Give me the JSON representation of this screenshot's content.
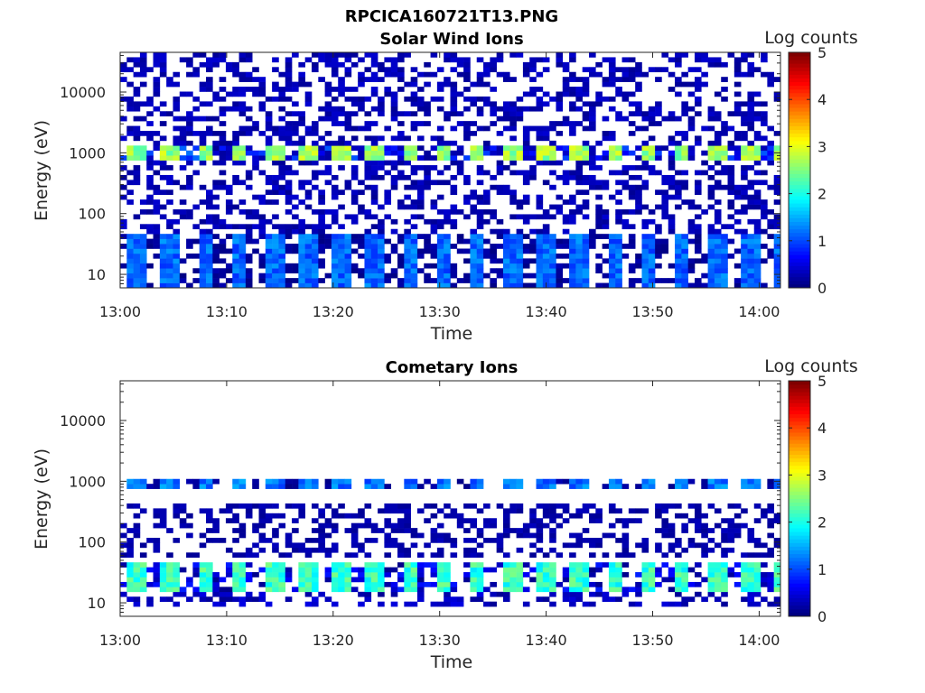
{
  "figure_title": "RPCICA160721T13.PNG",
  "chart_data": [
    {
      "type": "heatmap",
      "title": "Solar Wind Ions",
      "xlabel": "Time",
      "ylabel": "Energy (eV)",
      "y_scale": "log",
      "ylim": [
        6,
        45000
      ],
      "x_range": [
        "13:00",
        "14:02"
      ],
      "x_ticks": [
        "13:00",
        "13:10",
        "13:20",
        "13:30",
        "13:40",
        "13:50",
        "14:00"
      ],
      "y_ticks": [
        "10",
        "100",
        "1000",
        "10000"
      ],
      "colorbar": {
        "label": "Log counts",
        "range": [
          0,
          5
        ],
        "ticks": [
          "0",
          "1",
          "2",
          "3",
          "4",
          "5"
        ]
      },
      "features": [
        {
          "energy_band_eV": [
            6,
            45
          ],
          "typical_log_counts": [
            0.3,
            1.4
          ],
          "cadence_min": 3.2
        },
        {
          "energy_band_eV": [
            700,
            1400
          ],
          "typical_log_counts": [
            1.5,
            3.0
          ],
          "cadence_min": 3.2
        },
        {
          "energy_band_eV": [
            45,
            45000
          ],
          "typical_log_counts": [
            0.1,
            0.4
          ],
          "note": "sparse background"
        }
      ]
    },
    {
      "type": "heatmap",
      "title": "Cometary Ions",
      "xlabel": "Time",
      "ylabel": "Energy (eV)",
      "y_scale": "log",
      "ylim": [
        6,
        45000
      ],
      "x_range": [
        "13:00",
        "14:02"
      ],
      "x_ticks": [
        "13:00",
        "13:10",
        "13:20",
        "13:30",
        "13:40",
        "13:50",
        "14:00"
      ],
      "y_ticks": [
        "10",
        "100",
        "1000",
        "10000"
      ],
      "colorbar": {
        "label": "Log counts",
        "range": [
          0,
          5
        ],
        "ticks": [
          "0",
          "1",
          "2",
          "3",
          "4",
          "5"
        ]
      },
      "features": [
        {
          "energy_band_eV": [
            15,
            45
          ],
          "typical_log_counts": [
            1.0,
            2.5
          ],
          "cadence_min": 3.2
        },
        {
          "energy_band_eV": [
            8,
            15
          ],
          "typical_log_counts": [
            0.1,
            0.5
          ],
          "note": "low-energy tail"
        },
        {
          "energy_band_eV": [
            700,
            1100
          ],
          "typical_log_counts": [
            0.3,
            1.5
          ],
          "cadence_min": 3.2
        },
        {
          "energy_band_eV": [
            60,
            400
          ],
          "typical_log_counts": [
            0.1,
            0.3
          ],
          "note": "sparse scatter"
        }
      ]
    }
  ]
}
